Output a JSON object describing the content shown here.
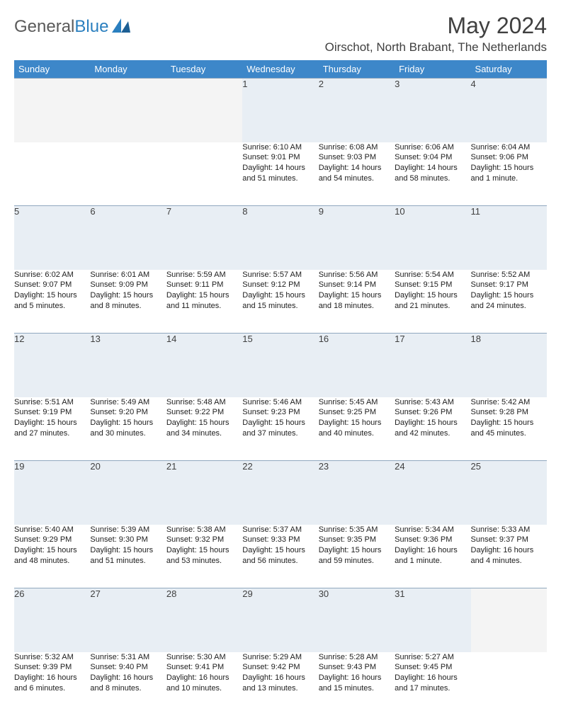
{
  "brand": {
    "part1": "General",
    "part2": "Blue"
  },
  "title": "May 2024",
  "location": "Oirschot, North Brabant, The Netherlands",
  "colors": {
    "header_bg": "#3d87c9",
    "header_text": "#ffffff",
    "daynum_bg": "#e8eef4",
    "border": "#90a8bf",
    "text": "#202020"
  },
  "day_headers": [
    "Sunday",
    "Monday",
    "Tuesday",
    "Wednesday",
    "Thursday",
    "Friday",
    "Saturday"
  ],
  "weeks": [
    [
      {
        "n": "",
        "empty": true
      },
      {
        "n": "",
        "empty": true
      },
      {
        "n": "",
        "empty": true
      },
      {
        "n": "1",
        "sr": "6:10 AM",
        "ss": "9:01 PM",
        "dl": "14 hours and 51 minutes."
      },
      {
        "n": "2",
        "sr": "6:08 AM",
        "ss": "9:03 PM",
        "dl": "14 hours and 54 minutes."
      },
      {
        "n": "3",
        "sr": "6:06 AM",
        "ss": "9:04 PM",
        "dl": "14 hours and 58 minutes."
      },
      {
        "n": "4",
        "sr": "6:04 AM",
        "ss": "9:06 PM",
        "dl": "15 hours and 1 minute."
      }
    ],
    [
      {
        "n": "5",
        "sr": "6:02 AM",
        "ss": "9:07 PM",
        "dl": "15 hours and 5 minutes."
      },
      {
        "n": "6",
        "sr": "6:01 AM",
        "ss": "9:09 PM",
        "dl": "15 hours and 8 minutes."
      },
      {
        "n": "7",
        "sr": "5:59 AM",
        "ss": "9:11 PM",
        "dl": "15 hours and 11 minutes."
      },
      {
        "n": "8",
        "sr": "5:57 AM",
        "ss": "9:12 PM",
        "dl": "15 hours and 15 minutes."
      },
      {
        "n": "9",
        "sr": "5:56 AM",
        "ss": "9:14 PM",
        "dl": "15 hours and 18 minutes."
      },
      {
        "n": "10",
        "sr": "5:54 AM",
        "ss": "9:15 PM",
        "dl": "15 hours and 21 minutes."
      },
      {
        "n": "11",
        "sr": "5:52 AM",
        "ss": "9:17 PM",
        "dl": "15 hours and 24 minutes."
      }
    ],
    [
      {
        "n": "12",
        "sr": "5:51 AM",
        "ss": "9:19 PM",
        "dl": "15 hours and 27 minutes."
      },
      {
        "n": "13",
        "sr": "5:49 AM",
        "ss": "9:20 PM",
        "dl": "15 hours and 30 minutes."
      },
      {
        "n": "14",
        "sr": "5:48 AM",
        "ss": "9:22 PM",
        "dl": "15 hours and 34 minutes."
      },
      {
        "n": "15",
        "sr": "5:46 AM",
        "ss": "9:23 PM",
        "dl": "15 hours and 37 minutes."
      },
      {
        "n": "16",
        "sr": "5:45 AM",
        "ss": "9:25 PM",
        "dl": "15 hours and 40 minutes."
      },
      {
        "n": "17",
        "sr": "5:43 AM",
        "ss": "9:26 PM",
        "dl": "15 hours and 42 minutes."
      },
      {
        "n": "18",
        "sr": "5:42 AM",
        "ss": "9:28 PM",
        "dl": "15 hours and 45 minutes."
      }
    ],
    [
      {
        "n": "19",
        "sr": "5:40 AM",
        "ss": "9:29 PM",
        "dl": "15 hours and 48 minutes."
      },
      {
        "n": "20",
        "sr": "5:39 AM",
        "ss": "9:30 PM",
        "dl": "15 hours and 51 minutes."
      },
      {
        "n": "21",
        "sr": "5:38 AM",
        "ss": "9:32 PM",
        "dl": "15 hours and 53 minutes."
      },
      {
        "n": "22",
        "sr": "5:37 AM",
        "ss": "9:33 PM",
        "dl": "15 hours and 56 minutes."
      },
      {
        "n": "23",
        "sr": "5:35 AM",
        "ss": "9:35 PM",
        "dl": "15 hours and 59 minutes."
      },
      {
        "n": "24",
        "sr": "5:34 AM",
        "ss": "9:36 PM",
        "dl": "16 hours and 1 minute."
      },
      {
        "n": "25",
        "sr": "5:33 AM",
        "ss": "9:37 PM",
        "dl": "16 hours and 4 minutes."
      }
    ],
    [
      {
        "n": "26",
        "sr": "5:32 AM",
        "ss": "9:39 PM",
        "dl": "16 hours and 6 minutes."
      },
      {
        "n": "27",
        "sr": "5:31 AM",
        "ss": "9:40 PM",
        "dl": "16 hours and 8 minutes."
      },
      {
        "n": "28",
        "sr": "5:30 AM",
        "ss": "9:41 PM",
        "dl": "16 hours and 10 minutes."
      },
      {
        "n": "29",
        "sr": "5:29 AM",
        "ss": "9:42 PM",
        "dl": "16 hours and 13 minutes."
      },
      {
        "n": "30",
        "sr": "5:28 AM",
        "ss": "9:43 PM",
        "dl": "16 hours and 15 minutes."
      },
      {
        "n": "31",
        "sr": "5:27 AM",
        "ss": "9:45 PM",
        "dl": "16 hours and 17 minutes."
      },
      {
        "n": "",
        "empty": true
      }
    ]
  ],
  "labels": {
    "sunrise": "Sunrise:",
    "sunset": "Sunset:",
    "daylight": "Daylight:"
  }
}
